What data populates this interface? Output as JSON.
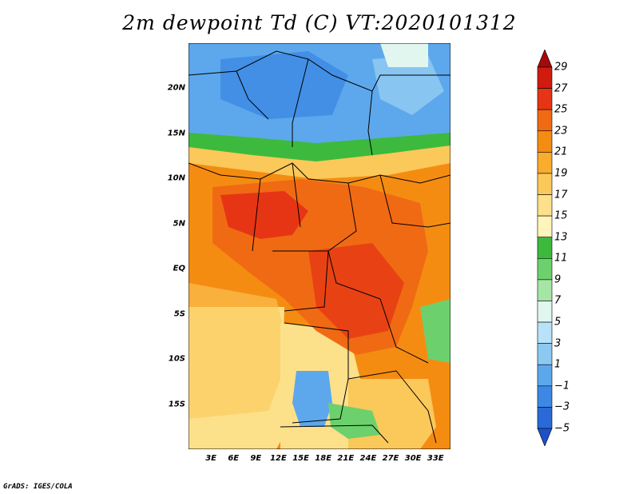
{
  "title": "2m dewpoint Td (C) VT:2020101312",
  "credit": "GrADS: IGES/COLA",
  "lat_labels": [
    {
      "text": "20N",
      "lat": 20
    },
    {
      "text": "15N",
      "lat": 15
    },
    {
      "text": "10N",
      "lat": 10
    },
    {
      "text": "5N",
      "lat": 5
    },
    {
      "text": "EQ",
      "lat": 0
    },
    {
      "text": "5S",
      "lat": -5
    },
    {
      "text": "10S",
      "lat": -10
    },
    {
      "text": "15S",
      "lat": -15
    }
  ],
  "lon_labels": [
    {
      "text": "3E",
      "lon": 3
    },
    {
      "text": "6E",
      "lon": 6
    },
    {
      "text": "9E",
      "lon": 9
    },
    {
      "text": "12E",
      "lon": 12
    },
    {
      "text": "15E",
      "lon": 15
    },
    {
      "text": "18E",
      "lon": 18
    },
    {
      "text": "21E",
      "lon": 21
    },
    {
      "text": "24E",
      "lon": 24
    },
    {
      "text": "27E",
      "lon": 27
    },
    {
      "text": "30E",
      "lon": 30
    },
    {
      "text": "33E",
      "lon": 33
    }
  ],
  "colorbar": {
    "labels": [
      "29",
      "27",
      "25",
      "23",
      "21",
      "19",
      "17",
      "15",
      "13",
      "11",
      "9",
      "7",
      "5",
      "3",
      "1",
      "−1",
      "−3",
      "−5"
    ],
    "colors": [
      "#a50a0a",
      "#d11b0f",
      "#e63514",
      "#f06a14",
      "#f58c12",
      "#f9ac2e",
      "#fbc85a",
      "#fde08a",
      "#fff4bc",
      "#3dba3d",
      "#6cd16c",
      "#a5e6a5",
      "#e2f6f0",
      "#b8e2f8",
      "#8dc8f2",
      "#5da8ec",
      "#3c88e4",
      "#2a6ad8",
      "#1e50c8"
    ]
  }
}
